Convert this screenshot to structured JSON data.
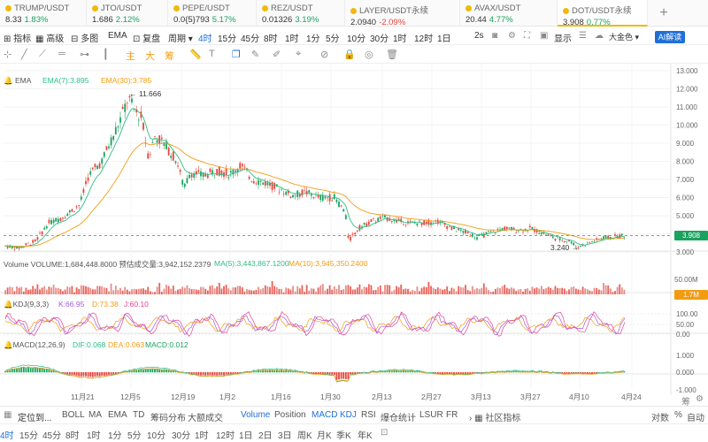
{
  "tickers": [
    {
      "name": "TRUMP/USDT",
      "price": "8.33",
      "change": "1.83%",
      "dir": "up"
    },
    {
      "name": "JTO/USDT",
      "price": "1.686",
      "change": "2.12%",
      "dir": "up"
    },
    {
      "name": "PEPE/USDT",
      "price": "0.0{5}793",
      "change": "5.17%",
      "dir": "up"
    },
    {
      "name": "REZ/USDT",
      "price": "0.01326",
      "change": "3.19%",
      "dir": "up"
    },
    {
      "name": "LAYER/USDT永续",
      "price": "2.0940",
      "change": "-2.09%",
      "dir": "down"
    },
    {
      "name": "AVAX/USDT",
      "price": "20.44",
      "change": "4.77%",
      "dir": "up"
    },
    {
      "name": "DOT/USDT永续",
      "price": "3.908",
      "change": "0.77%",
      "dir": "up"
    }
  ],
  "add_tab": "+",
  "toolbar": {
    "indicator": "指标",
    "pro": "高级",
    "multi": "多图",
    "ema": "EMA",
    "restore": "复盘",
    "period": "周期",
    "intervals": [
      "4时",
      "15分",
      "45分",
      "8时",
      "1时",
      "1分",
      "5分",
      "10分",
      "30分",
      "1时",
      "12时",
      "1日"
    ],
    "replay_speed": "2s",
    "display": "显示",
    "theme": "大金色",
    "ai": "AI解读"
  },
  "drawtools": {
    "main": "主",
    "big": "大",
    "chips": "筹"
  },
  "legends": {
    "ema": "EMA",
    "ema7": "EMA(7):3.895",
    "ema30": "EMA(30):3.785",
    "volume": "Volume VOLUME:1,684,448.8000  预估成交量:3,942,152.2379",
    "ma5": "MA(5):3,443,867.1200",
    "ma10": "MA(10):3,945,350.2400",
    "kdj": "KDJ(9,3,3)",
    "k": "K:66.95",
    "d": "D:73.38",
    "j": "J:60.10",
    "macd": "MACD(12,26,9)",
    "dif": "DIF:0.068",
    "dea": "DEA:0.063",
    "macdv": "MACD:0.012"
  },
  "annotations": {
    "high": "← 11.666",
    "low": "3.240 →"
  },
  "price_label": "3.908",
  "volume_label": "1.7M",
  "price_axis": [
    "13.000",
    "12.000",
    "11.000",
    "10.000",
    "9.000",
    "8.000",
    "7.000",
    "6.000",
    "5.000",
    "4.000",
    "3.000"
  ],
  "vol_axis": [
    "50.00M"
  ],
  "kdj_axis": [
    "100.00",
    "50.00",
    "0.00"
  ],
  "macd_axis": [
    "1.000",
    "0.000",
    "-1.000"
  ],
  "time_axis": [
    "11月21",
    "12月5",
    "12月19",
    "1月2",
    "1月16",
    "1月30",
    "2月13",
    "2月27",
    "3月13",
    "3月27",
    "4月10",
    "4月24"
  ],
  "axis_footer": {
    "chips": "筹",
    "settings": "⚙"
  },
  "bottom1": {
    "locate": "定位到...",
    "items": [
      "BOLL",
      "MA",
      "EMA",
      "TD",
      "筹码分布",
      "大额成交",
      "Volume",
      "Position",
      "MACD",
      "KDJ",
      "RSI",
      "爆仓统计",
      "LSUR",
      "FR"
    ],
    "community": "社区指标",
    "log": "对数",
    "pct": "%",
    "auto": "自动"
  },
  "bottom2": [
    "4时",
    "15分",
    "45分",
    "8时",
    "1时",
    "1分",
    "5分",
    "10分",
    "30分",
    "1时",
    "12时",
    "1日",
    "2日",
    "3日",
    "周K",
    "月K",
    "季K",
    "年K"
  ],
  "colors": {
    "up": "#1aa260",
    "down": "#e8443a",
    "ema7": "#2ebd85",
    "ema30": "#f39c12",
    "k": "#a35ae0",
    "d": "#f39c12",
    "j": "#e84393",
    "accent": "#1e6fd9"
  }
}
